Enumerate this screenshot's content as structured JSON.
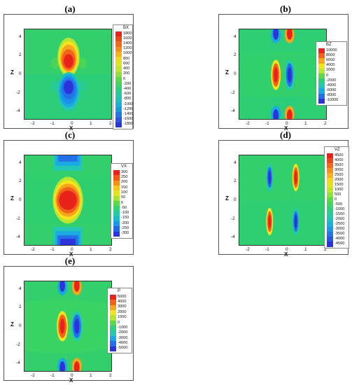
{
  "panels": [
    {
      "label": "(a)",
      "variable": "BX",
      "xlabel": "X",
      "ylabel": "Z",
      "xticks": [
        "-2",
        "-1",
        "0",
        "1",
        "2"
      ],
      "yticks": [
        "4",
        "2",
        "0",
        "-2",
        "-4"
      ],
      "legend_levels": [
        "1800",
        "1600",
        "1400",
        "1200",
        "1000",
        "800",
        "600",
        "400",
        "200",
        "0",
        "-200",
        "-400",
        "-600",
        "-800",
        "-1000",
        "-1200",
        "-1400",
        "-1600",
        "-1800"
      ]
    },
    {
      "label": "(b)",
      "variable": "BZ",
      "xlabel": "X",
      "ylabel": "Z",
      "xticks": [
        "-2",
        "-1",
        "0",
        "1",
        "2"
      ],
      "yticks": [
        "4",
        "2",
        "0",
        "-2",
        "-4"
      ],
      "legend_levels": [
        "10000",
        "8000",
        "6000",
        "4000",
        "2000",
        "0",
        "-2000",
        "-4000",
        "-6000",
        "-8000",
        "-10000"
      ]
    },
    {
      "label": "(c)",
      "variable": "VX",
      "xlabel": "X",
      "ylabel": "Z",
      "xticks": [
        "-2",
        "-1",
        "0",
        "1",
        "2"
      ],
      "yticks": [
        "4",
        "2",
        "0",
        "-2",
        "-4"
      ],
      "legend_levels": [
        "300",
        "250",
        "200",
        "150",
        "100",
        "50",
        "0",
        "-50",
        "-100",
        "-150",
        "-200",
        "-250",
        "-300"
      ]
    },
    {
      "label": "(d)",
      "variable": "VZ",
      "xlabel": "X",
      "ylabel": "Z",
      "xticks": [
        "-2",
        "-1",
        "0",
        "1",
        "2"
      ],
      "yticks": [
        "4",
        "2",
        "0",
        "-2",
        "-4"
      ],
      "legend_levels": [
        "4500",
        "4000",
        "3500",
        "3000",
        "2500",
        "2000",
        "1500",
        "1000",
        "500",
        "0",
        "-500",
        "-1000",
        "-1500",
        "-2000",
        "-2500",
        "-3000",
        "-3500",
        "-4000",
        "-4500"
      ]
    },
    {
      "label": "(e)",
      "variable": "P",
      "xlabel": "X",
      "ylabel": "Z",
      "xticks": [
        "-2",
        "-1",
        "0",
        "1",
        "2"
      ],
      "yticks": [
        "4",
        "2",
        "0",
        "-2",
        "-4"
      ],
      "legend_levels": [
        "5000",
        "4000",
        "3000",
        "2000",
        "1000",
        "0",
        "-1000",
        "-2000",
        "-3000",
        "-4000",
        "-5000"
      ]
    }
  ],
  "colors": {
    "background": "#34d06a",
    "ramp": [
      "#e8231c",
      "#f2621a",
      "#f7a51d",
      "#f4e41f",
      "#b6e532",
      "#5bd94b",
      "#2ed07a",
      "#22c7b5",
      "#1aa9e0",
      "#2470e8",
      "#2c33d8"
    ]
  }
}
